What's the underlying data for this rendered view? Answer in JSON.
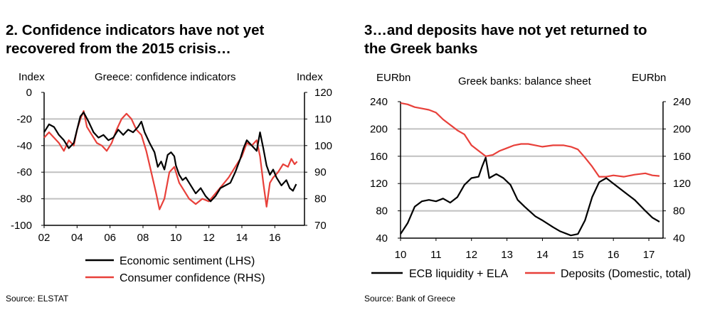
{
  "left_panel": {
    "title_line1": "2. Confidence indicators have not yet",
    "title_line2": "recovered from the 2015 crisis…",
    "source": "Source: ELSTAT"
  },
  "right_panel": {
    "title_line1": "3…and deposits have not yet returned to",
    "title_line2": "the Greek banks",
    "source": "Source: Bank of Greece"
  },
  "colors": {
    "series_black": "#000000",
    "series_red": "#e8403a",
    "grid": "#c0c0c0"
  },
  "chart_data": [
    {
      "type": "line",
      "title": "Greece: confidence indicators",
      "ylabel_left": "Index",
      "ylabel_right": "Index",
      "x_ticks": [
        "02",
        "04",
        "06",
        "08",
        "10",
        "12",
        "14",
        "16"
      ],
      "x_range": [
        2002,
        2017.8
      ],
      "ylim_left": [
        -100,
        0
      ],
      "y_ticks_left": [
        "0",
        "-20",
        "-40",
        "-60",
        "-80",
        "-100"
      ],
      "ylim_right": [
        70,
        120
      ],
      "y_ticks_right": [
        "120",
        "110",
        "100",
        "90",
        "80",
        "70"
      ],
      "grid": true,
      "series": [
        {
          "name": "Economic sentiment (LHS)",
          "axis": "left",
          "color": "#000000",
          "points": [
            [
              2002.0,
              -30
            ],
            [
              2002.3,
              -24
            ],
            [
              2002.6,
              -26
            ],
            [
              2002.9,
              -32
            ],
            [
              2003.2,
              -36
            ],
            [
              2003.5,
              -42
            ],
            [
              2003.8,
              -38
            ],
            [
              2004.0,
              -28
            ],
            [
              2004.2,
              -18
            ],
            [
              2004.4,
              -15
            ],
            [
              2004.7,
              -22
            ],
            [
              2005.0,
              -30
            ],
            [
              2005.3,
              -34
            ],
            [
              2005.6,
              -32
            ],
            [
              2005.9,
              -36
            ],
            [
              2006.2,
              -34
            ],
            [
              2006.5,
              -28
            ],
            [
              2006.8,
              -32
            ],
            [
              2007.1,
              -28
            ],
            [
              2007.4,
              -30
            ],
            [
              2007.7,
              -26
            ],
            [
              2007.9,
              -22
            ],
            [
              2008.1,
              -30
            ],
            [
              2008.4,
              -38
            ],
            [
              2008.7,
              -45
            ],
            [
              2008.9,
              -56
            ],
            [
              2009.1,
              -52
            ],
            [
              2009.3,
              -58
            ],
            [
              2009.5,
              -47
            ],
            [
              2009.7,
              -45
            ],
            [
              2009.9,
              -48
            ],
            [
              2010.0,
              -55
            ],
            [
              2010.2,
              -62
            ],
            [
              2010.4,
              -66
            ],
            [
              2010.6,
              -64
            ],
            [
              2010.9,
              -70
            ],
            [
              2011.2,
              -76
            ],
            [
              2011.5,
              -72
            ],
            [
              2011.8,
              -78
            ],
            [
              2012.1,
              -82
            ],
            [
              2012.4,
              -78
            ],
            [
              2012.7,
              -72
            ],
            [
              2013.0,
              -70
            ],
            [
              2013.3,
              -68
            ],
            [
              2013.6,
              -60
            ],
            [
              2013.9,
              -50
            ],
            [
              2014.1,
              -42
            ],
            [
              2014.3,
              -36
            ],
            [
              2014.6,
              -40
            ],
            [
              2014.9,
              -44
            ],
            [
              2015.1,
              -30
            ],
            [
              2015.3,
              -42
            ],
            [
              2015.5,
              -55
            ],
            [
              2015.7,
              -62
            ],
            [
              2015.9,
              -58
            ],
            [
              2016.1,
              -64
            ],
            [
              2016.4,
              -70
            ],
            [
              2016.7,
              -66
            ],
            [
              2016.9,
              -72
            ],
            [
              2017.1,
              -74
            ],
            [
              2017.3,
              -69
            ]
          ]
        },
        {
          "name": "Consumer confidence (RHS)",
          "axis": "right",
          "color": "#e8403a",
          "points": [
            [
              2002.0,
              103
            ],
            [
              2002.3,
              105
            ],
            [
              2002.6,
              103
            ],
            [
              2002.9,
              101
            ],
            [
              2003.2,
              98
            ],
            [
              2003.5,
              102
            ],
            [
              2003.8,
              100
            ],
            [
              2004.0,
              106
            ],
            [
              2004.2,
              110
            ],
            [
              2004.4,
              113
            ],
            [
              2004.6,
              107
            ],
            [
              2004.9,
              104
            ],
            [
              2005.2,
              101
            ],
            [
              2005.5,
              100
            ],
            [
              2005.8,
              98
            ],
            [
              2006.1,
              101
            ],
            [
              2006.4,
              106
            ],
            [
              2006.7,
              110
            ],
            [
              2007.0,
              112
            ],
            [
              2007.3,
              110
            ],
            [
              2007.6,
              106
            ],
            [
              2007.9,
              104
            ],
            [
              2008.2,
              98
            ],
            [
              2008.5,
              90
            ],
            [
              2008.8,
              82
            ],
            [
              2009.0,
              76
            ],
            [
              2009.3,
              80
            ],
            [
              2009.6,
              90
            ],
            [
              2009.9,
              92
            ],
            [
              2010.2,
              86
            ],
            [
              2010.5,
              83
            ],
            [
              2010.8,
              80
            ],
            [
              2011.2,
              78
            ],
            [
              2011.6,
              80
            ],
            [
              2012.0,
              79
            ],
            [
              2012.4,
              82
            ],
            [
              2012.8,
              85
            ],
            [
              2013.2,
              88
            ],
            [
              2013.6,
              92
            ],
            [
              2014.0,
              96
            ],
            [
              2014.3,
              101
            ],
            [
              2014.6,
              100
            ],
            [
              2014.9,
              102
            ],
            [
              2015.1,
              96
            ],
            [
              2015.3,
              86
            ],
            [
              2015.5,
              77
            ],
            [
              2015.7,
              86
            ],
            [
              2015.9,
              88
            ],
            [
              2016.2,
              90
            ],
            [
              2016.5,
              93
            ],
            [
              2016.8,
              92
            ],
            [
              2017.0,
              95
            ],
            [
              2017.2,
              93
            ],
            [
              2017.35,
              94
            ]
          ]
        }
      ]
    },
    {
      "type": "line",
      "title": "Greek banks: balance sheet",
      "ylabel_left": "EURbn",
      "ylabel_right": "EURbn",
      "x_ticks": [
        "10",
        "11",
        "12",
        "13",
        "14",
        "15",
        "16",
        "17"
      ],
      "x_range": [
        2010,
        2017.4
      ],
      "ylim": [
        40,
        240
      ],
      "y_ticks": [
        "240",
        "200",
        "160",
        "120",
        "80",
        "40"
      ],
      "grid": true,
      "series": [
        {
          "name": "ECB liquidity + ELA",
          "color": "#000000",
          "points": [
            [
              2010.0,
              46
            ],
            [
              2010.2,
              62
            ],
            [
              2010.4,
              86
            ],
            [
              2010.6,
              94
            ],
            [
              2010.8,
              96
            ],
            [
              2011.0,
              94
            ],
            [
              2011.2,
              98
            ],
            [
              2011.4,
              92
            ],
            [
              2011.6,
              100
            ],
            [
              2011.8,
              118
            ],
            [
              2012.0,
              128
            ],
            [
              2012.2,
              130
            ],
            [
              2012.3,
              145
            ],
            [
              2012.4,
              158
            ],
            [
              2012.5,
              128
            ],
            [
              2012.7,
              134
            ],
            [
              2012.9,
              128
            ],
            [
              2013.1,
              118
            ],
            [
              2013.3,
              96
            ],
            [
              2013.5,
              86
            ],
            [
              2013.8,
              72
            ],
            [
              2014.0,
              66
            ],
            [
              2014.3,
              56
            ],
            [
              2014.5,
              50
            ],
            [
              2014.8,
              44
            ],
            [
              2015.0,
              46
            ],
            [
              2015.2,
              66
            ],
            [
              2015.4,
              100
            ],
            [
              2015.6,
              122
            ],
            [
              2015.8,
              128
            ],
            [
              2016.0,
              120
            ],
            [
              2016.3,
              108
            ],
            [
              2016.6,
              96
            ],
            [
              2016.9,
              80
            ],
            [
              2017.1,
              70
            ],
            [
              2017.3,
              64
            ]
          ]
        },
        {
          "name": "Deposits (Domestic, total)",
          "color": "#e8403a",
          "points": [
            [
              2010.0,
              238
            ],
            [
              2010.2,
              236
            ],
            [
              2010.4,
              232
            ],
            [
              2010.6,
              230
            ],
            [
              2010.8,
              228
            ],
            [
              2011.0,
              224
            ],
            [
              2011.2,
              214
            ],
            [
              2011.4,
              206
            ],
            [
              2011.6,
              198
            ],
            [
              2011.8,
              192
            ],
            [
              2012.0,
              176
            ],
            [
              2012.2,
              168
            ],
            [
              2012.4,
              160
            ],
            [
              2012.6,
              162
            ],
            [
              2012.8,
              168
            ],
            [
              2013.0,
              172
            ],
            [
              2013.2,
              176
            ],
            [
              2013.4,
              178
            ],
            [
              2013.6,
              178
            ],
            [
              2013.8,
              176
            ],
            [
              2014.0,
              174
            ],
            [
              2014.3,
              176
            ],
            [
              2014.6,
              176
            ],
            [
              2014.8,
              174
            ],
            [
              2015.0,
              170
            ],
            [
              2015.2,
              158
            ],
            [
              2015.4,
              145
            ],
            [
              2015.6,
              130
            ],
            [
              2015.8,
              130
            ],
            [
              2016.0,
              132
            ],
            [
              2016.3,
              130
            ],
            [
              2016.6,
              133
            ],
            [
              2016.9,
              135
            ],
            [
              2017.1,
              132
            ],
            [
              2017.3,
              131
            ]
          ]
        }
      ]
    }
  ]
}
